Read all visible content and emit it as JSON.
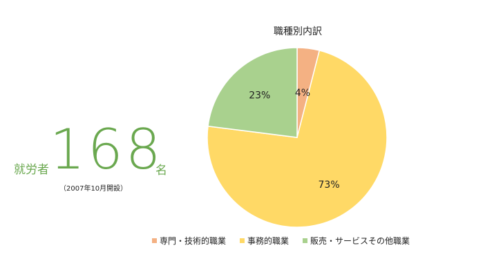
{
  "stat": {
    "label": "就労者",
    "number": "168",
    "unit": "名",
    "note": "（2007年10月開設）",
    "color": "#6aa84f"
  },
  "chart_data": {
    "type": "pie",
    "title": "職種別内訳",
    "slices": [
      {
        "name": "専門・技術的職業",
        "value": 4,
        "label": "4%",
        "color": "#f4b183"
      },
      {
        "name": "事務的職業",
        "value": 73,
        "label": "73%",
        "color": "#ffd966"
      },
      {
        "name": "販売・サービスその他職業",
        "value": 23,
        "label": "23%",
        "color": "#a9d18e"
      }
    ],
    "start_angle": "12 o'clock",
    "direction": "clockwise",
    "legend_position": "bottom"
  }
}
